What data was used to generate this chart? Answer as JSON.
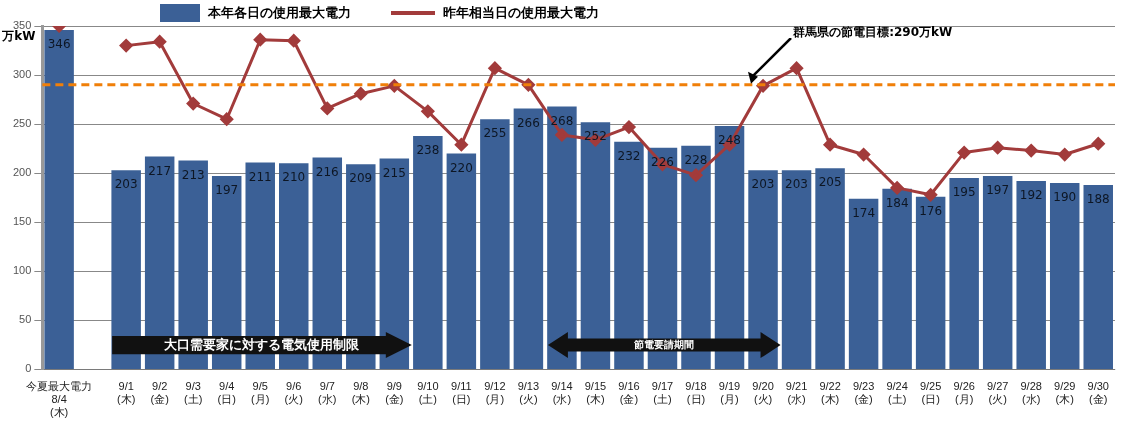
{
  "chart_data": {
    "type": "bar",
    "ylabel": "万kW",
    "categories": [
      "今夏最大電力 8/4(木)",
      null,
      "9/1(木)",
      "9/2(金)",
      "9/3(土)",
      "9/4(日)",
      "9/5(月)",
      "9/6(火)",
      "9/7(水)",
      "9/8(木)",
      "9/9(金)",
      "9/10(土)",
      "9/11(日)",
      "9/12(月)",
      "9/13(火)",
      "9/14(水)",
      "9/15(木)",
      "9/16(金)",
      "9/17(土)",
      "9/18(日)",
      "9/19(月)",
      "9/20(火)",
      "9/21(水)",
      "9/22(木)",
      "9/23(金)",
      "9/24(土)",
      "9/25(日)",
      "9/26(月)",
      "9/27(火)",
      "9/28(水)",
      "9/29(木)",
      "9/30(金)"
    ],
    "series": [
      {
        "name": "本年各日の使用最大電力",
        "color": "#3b6096",
        "values": [
          346,
          null,
          203,
          217,
          213,
          197,
          211,
          210,
          216,
          209,
          215,
          238,
          220,
          255,
          266,
          268,
          252,
          232,
          226,
          228,
          248,
          203,
          203,
          205,
          174,
          184,
          176,
          195,
          197,
          192,
          190,
          188
        ],
        "value_labels": [
          "346",
          null,
          "203",
          "217",
          "213",
          "197",
          "211",
          "210",
          "216",
          "209",
          "215",
          "238",
          "220",
          "255",
          "266",
          "268",
          "252",
          "232",
          "226",
          "228",
          "248",
          "203",
          "203",
          "205",
          "174",
          "184",
          "176",
          "195",
          "197",
          "192",
          "190",
          "188"
        ]
      },
      {
        "name": "昨年相当日の使用最大電力",
        "type": "line",
        "color": "#a23b3b",
        "values": [
          350,
          null,
          330,
          334,
          271,
          255,
          336,
          335,
          266,
          281,
          289,
          263,
          229,
          307,
          290,
          239,
          234,
          247,
          209,
          198,
          229,
          289,
          307,
          229,
          219,
          185,
          178,
          221,
          226,
          223,
          219,
          230
        ]
      }
    ],
    "marker": "diamond",
    "ylim": [
      0,
      350
    ],
    "yticks": [
      0,
      50,
      100,
      150,
      200,
      250,
      300,
      350
    ],
    "grid": "y",
    "legend": "top",
    "ref_lines": [
      {
        "axis": "y",
        "value": 290,
        "label": "群馬県の節電目標:290万kW",
        "color": "#f07f09",
        "line_style": "dashed"
      }
    ],
    "annotations": [
      "大口需要家に対する電気使用制限",
      "節電要請期間"
    ]
  }
}
